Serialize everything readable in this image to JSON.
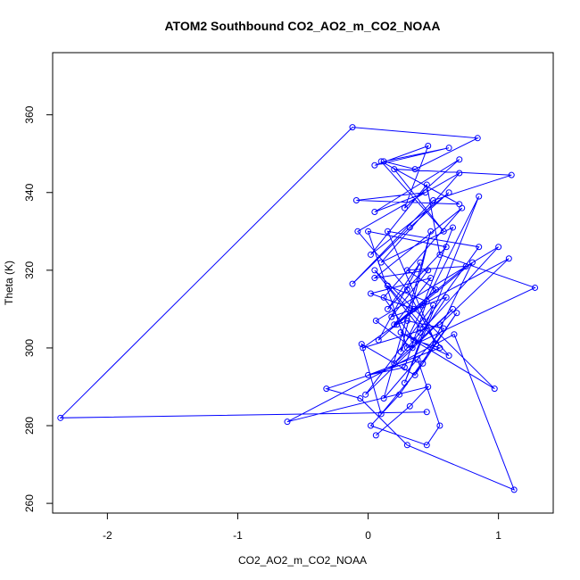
{
  "chart_data": {
    "type": "line",
    "title": "ATOM2 Southbound CO2_AO2_m_CO2_NOAA",
    "xlabel": "CO2_AO2_m_CO2_NOAA",
    "ylabel": "Theta (K)",
    "xlim": [
      -2.42,
      1.42
    ],
    "ylim": [
      257.5,
      376
    ],
    "xticks": [
      -2,
      -1,
      0,
      1
    ],
    "yticks": [
      260,
      280,
      300,
      320,
      340,
      360
    ],
    "grid": false,
    "colors": {
      "series": "#0000ff",
      "axis": "#000000"
    },
    "series": [
      {
        "name": "",
        "x": [
          0.45,
          -2.36,
          -0.12,
          0.84,
          0.36,
          0.12,
          0.62,
          0.05,
          0.46,
          0.28,
          0.7,
          0.05,
          0.44,
          -0.09,
          0.7,
          0.1,
          0.58,
          0.2,
          1.1,
          0.5,
          -0.12,
          0.32,
          0.62,
          0.02,
          0.45,
          0.55,
          1.28,
          0.3,
          0.0,
          0.6,
          0.15,
          0.4,
          0.08,
          0.52,
          0.3,
          0.75,
          0.2,
          0.48,
          0.02,
          0.35,
          1.08,
          0.55,
          -0.04,
          0.42,
          0.65,
          0.1,
          0.7,
          -0.08,
          0.3,
          0.52,
          0.15,
          0.85,
          0.4,
          0.05,
          0.97,
          0.25,
          0.62,
          0.15,
          0.45,
          0.28,
          0.0,
          0.55,
          0.35,
          0.12,
          0.72,
          0.05,
          0.46,
          0.18,
          0.6,
          0.34,
          0.06,
          1.0,
          0.4,
          0.2,
          0.65,
          -0.02,
          0.5,
          0.28,
          0.85,
          0.25,
          0.48,
          0.12,
          0.58,
          0.3,
          0.22,
          0.8,
          0.42,
          0.1,
          -0.05,
          0.36,
          0.68,
          0.24,
          0.02,
          0.45,
          0.55,
          0.38,
          -0.32,
          -0.06,
          0.3,
          1.12,
          0.66,
          -0.62,
          0.46,
          0.32,
          0.06
        ],
        "y": [
          283.5,
          282.0,
          356.8,
          354.0,
          346.0,
          348.0,
          351.5,
          347.0,
          352.0,
          336.0,
          348.5,
          335.0,
          340.0,
          338.0,
          337.0,
          348.0,
          330.0,
          346.0,
          344.5,
          338.0,
          316.5,
          331.0,
          340.0,
          324.0,
          342.0,
          324.0,
          315.5,
          300.0,
          330.0,
          326.0,
          310.0,
          322.0,
          302.0,
          315.0,
          320.0,
          321.0,
          306.0,
          318.0,
          314.0,
          310.0,
          323.0,
          306.0,
          300.0,
          311.0,
          331.0,
          322.0,
          345.0,
          330.0,
          315.0,
          301.0,
          330.0,
          326.0,
          305.0,
          320.0,
          289.5,
          304.0,
          298.0,
          316.0,
          312.0,
          295.0,
          293.0,
          300.0,
          302.0,
          313.0,
          336.0,
          318.0,
          320.0,
          308.0,
          313.0,
          300.0,
          307.0,
          326.0,
          304.0,
          296.0,
          310.0,
          288.0,
          311.0,
          291.0,
          339.0,
          299.0,
          330.0,
          287.0,
          305.0,
          307.0,
          306.0,
          322.0,
          296.0,
          283.0,
          301.0,
          293.0,
          309.0,
          288.0,
          280.0,
          275.0,
          280.0,
          297.0,
          289.5,
          287.0,
          275.0,
          263.5,
          303.5,
          281.0,
          290.0,
          285.0,
          277.5
        ]
      }
    ]
  }
}
